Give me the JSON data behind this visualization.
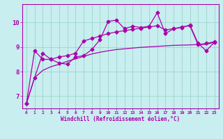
{
  "xlabel": "Windchill (Refroidissement éolien,°C)",
  "background_color": "#c8eef0",
  "grid_color": "#a0d8d0",
  "line_color": "#aa00aa",
  "xlim": [
    -0.5,
    23.5
  ],
  "ylim": [
    6.5,
    10.75
  ],
  "xticks": [
    0,
    1,
    2,
    3,
    4,
    5,
    6,
    7,
    8,
    9,
    10,
    11,
    12,
    13,
    14,
    15,
    16,
    17,
    18,
    19,
    20,
    21,
    22,
    23
  ],
  "yticks": [
    7,
    8,
    9,
    10
  ],
  "x": [
    0,
    1,
    2,
    3,
    4,
    5,
    6,
    7,
    8,
    9,
    10,
    11,
    12,
    13,
    14,
    15,
    16,
    17,
    18,
    19,
    20,
    21,
    22,
    23
  ],
  "line1": [
    6.7,
    7.75,
    8.75,
    8.5,
    8.35,
    8.3,
    8.6,
    8.65,
    8.9,
    9.3,
    10.05,
    10.1,
    9.75,
    9.85,
    9.8,
    9.85,
    10.4,
    9.55,
    9.75,
    9.8,
    9.9,
    9.15,
    8.85,
    9.2
  ],
  "line2": [
    6.7,
    8.85,
    8.5,
    8.5,
    8.6,
    8.65,
    8.75,
    9.25,
    9.35,
    9.45,
    9.55,
    9.62,
    9.67,
    9.72,
    9.77,
    9.82,
    9.87,
    9.7,
    9.75,
    9.82,
    9.87,
    9.1,
    9.15,
    9.22
  ],
  "line3": [
    6.7,
    7.75,
    8.05,
    8.2,
    8.3,
    8.42,
    8.52,
    8.62,
    8.72,
    8.79,
    8.85,
    8.9,
    8.93,
    8.96,
    8.99,
    9.01,
    9.03,
    9.05,
    9.07,
    9.08,
    9.09,
    9.1,
    9.11,
    9.2
  ]
}
